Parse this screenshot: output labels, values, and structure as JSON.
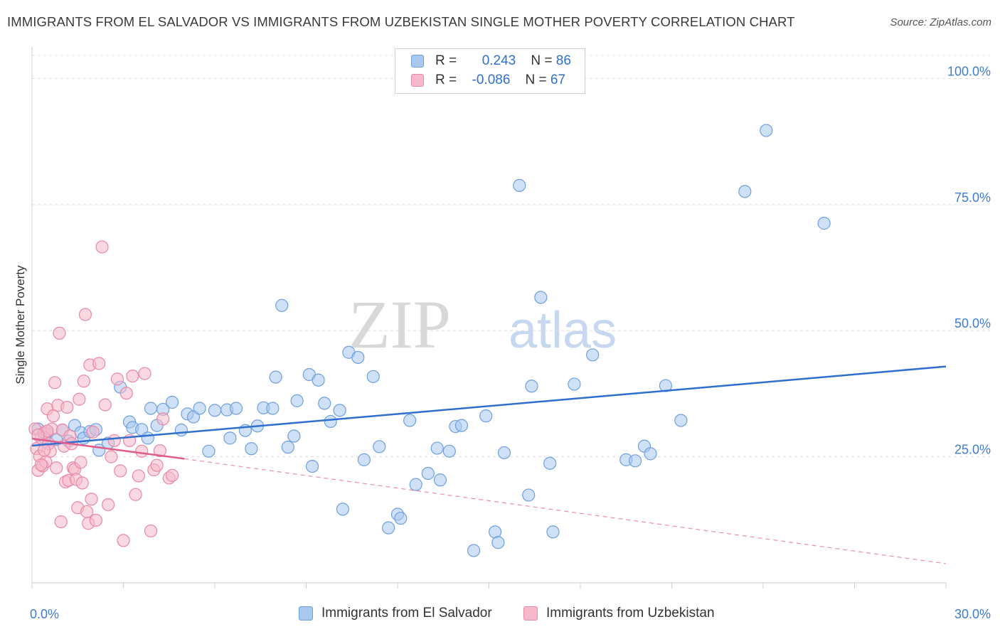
{
  "title": "IMMIGRANTS FROM EL SALVADOR VS IMMIGRANTS FROM UZBEKISTAN SINGLE MOTHER POVERTY CORRELATION CHART",
  "source": "Source: ZipAtlas.com",
  "watermark": {
    "zip": "ZIP",
    "atlas": "atlas"
  },
  "legend": {
    "rows": [
      {
        "r_label": "R =",
        "r_value": "0.243",
        "n_label": "N =",
        "n_value": "86",
        "color": "#a8c8f0"
      },
      {
        "r_label": "R =",
        "r_value": "-0.086",
        "n_label": "N =",
        "n_value": "67",
        "color": "#f6b8cb"
      }
    ]
  },
  "chart_data": {
    "type": "scatter",
    "title": "IMMIGRANTS FROM EL SALVADOR VS IMMIGRANTS FROM UZBEKISTAN SINGLE MOTHER POVERTY CORRELATION CHART",
    "xlabel": "",
    "ylabel": "Single Mother Poverty",
    "xlim": [
      0,
      30
    ],
    "ylim": [
      0,
      105
    ],
    "x_tick_labels": [
      "0.0%",
      "30.0%"
    ],
    "y_ticks": [
      25,
      50,
      75,
      100
    ],
    "y_tick_labels": [
      "25.0%",
      "50.0%",
      "75.0%",
      "100.0%"
    ],
    "grid": true,
    "legend_position": "bottom",
    "series": [
      {
        "name": "Immigrants from El Salvador",
        "color": "#a8c8f0",
        "stroke": "#6f9fdc",
        "trend_color": "#2f6fd0",
        "trend": {
          "x": [
            0,
            30
          ],
          "y": [
            27.2,
            42.9
          ]
        },
        "points": [
          [
            0.2,
            30.5
          ],
          [
            0.5,
            29.6
          ],
          [
            0.8,
            28.4
          ],
          [
            1.0,
            30.3
          ],
          [
            1.2,
            28.1
          ],
          [
            1.4,
            31.2
          ],
          [
            1.6,
            29.8
          ],
          [
            1.7,
            28.7
          ],
          [
            1.9,
            30.0
          ],
          [
            2.2,
            26.3
          ],
          [
            2.5,
            27.7
          ],
          [
            2.9,
            38.8
          ],
          [
            3.2,
            31.9
          ],
          [
            3.3,
            30.8
          ],
          [
            3.6,
            30.4
          ],
          [
            3.8,
            28.7
          ],
          [
            3.9,
            34.6
          ],
          [
            4.1,
            31.2
          ],
          [
            4.3,
            34.4
          ],
          [
            4.6,
            35.8
          ],
          [
            4.9,
            30.3
          ],
          [
            5.1,
            33.5
          ],
          [
            5.3,
            32.9
          ],
          [
            5.5,
            34.6
          ],
          [
            5.8,
            26.1
          ],
          [
            6.0,
            34.2
          ],
          [
            6.4,
            34.3
          ],
          [
            6.5,
            28.7
          ],
          [
            6.7,
            34.6
          ],
          [
            7.0,
            30.2
          ],
          [
            7.2,
            26.6
          ],
          [
            7.4,
            31.1
          ],
          [
            7.6,
            34.7
          ],
          [
            7.9,
            34.6
          ],
          [
            8.0,
            40.8
          ],
          [
            8.2,
            55.0
          ],
          [
            8.4,
            26.9
          ],
          [
            8.6,
            29.1
          ],
          [
            8.7,
            36.1
          ],
          [
            9.1,
            41.3
          ],
          [
            9.2,
            23.1
          ],
          [
            9.4,
            40.2
          ],
          [
            9.6,
            35.6
          ],
          [
            9.8,
            32.0
          ],
          [
            10.1,
            34.2
          ],
          [
            10.2,
            14.6
          ],
          [
            10.4,
            45.7
          ],
          [
            10.7,
            44.7
          ],
          [
            10.9,
            24.4
          ],
          [
            11.2,
            40.9
          ],
          [
            11.4,
            27.0
          ],
          [
            11.7,
            10.9
          ],
          [
            12.0,
            13.6
          ],
          [
            12.1,
            12.8
          ],
          [
            12.4,
            32.2
          ],
          [
            12.6,
            19.5
          ],
          [
            13.0,
            21.7
          ],
          [
            13.3,
            26.7
          ],
          [
            13.4,
            20.4
          ],
          [
            13.7,
            26.1
          ],
          [
            13.9,
            31.0
          ],
          [
            14.1,
            31.2
          ],
          [
            14.5,
            6.4
          ],
          [
            14.9,
            33.1
          ],
          [
            15.2,
            10.1
          ],
          [
            15.3,
            8.0
          ],
          [
            15.5,
            25.8
          ],
          [
            16.0,
            78.8
          ],
          [
            16.3,
            17.4
          ],
          [
            16.4,
            39.0
          ],
          [
            16.7,
            56.6
          ],
          [
            17.0,
            23.7
          ],
          [
            17.1,
            10.1
          ],
          [
            17.8,
            39.4
          ],
          [
            18.4,
            45.2
          ],
          [
            19.5,
            24.4
          ],
          [
            19.8,
            24.2
          ],
          [
            20.1,
            27.1
          ],
          [
            20.3,
            25.6
          ],
          [
            20.8,
            39.1
          ],
          [
            21.3,
            32.2
          ],
          [
            24.1,
            89.7
          ],
          [
            23.4,
            77.6
          ],
          [
            26.0,
            71.3
          ],
          [
            2.1,
            30.4
          ],
          [
            0.4,
            28.8
          ]
        ]
      },
      {
        "name": "Immigrants from Uzbekistan",
        "color": "#f6b8cb",
        "stroke": "#e888a6",
        "trend_color": "#e05c8a",
        "trend": {
          "x": [
            0,
            5.0
          ],
          "y": [
            28.6,
            24.6
          ]
        },
        "trend_dashed": {
          "x": [
            5.0,
            30
          ],
          "y": [
            24.6,
            3.8
          ]
        },
        "points": [
          [
            0.1,
            30.5
          ],
          [
            0.15,
            26.6
          ],
          [
            0.2,
            22.3
          ],
          [
            0.25,
            25.1
          ],
          [
            0.3,
            28.7
          ],
          [
            0.35,
            23.2
          ],
          [
            0.4,
            29.8
          ],
          [
            0.45,
            24.0
          ],
          [
            0.5,
            34.5
          ],
          [
            0.55,
            27.6
          ],
          [
            0.6,
            26.1
          ],
          [
            0.65,
            30.5
          ],
          [
            0.7,
            33.1
          ],
          [
            0.75,
            39.7
          ],
          [
            0.8,
            22.8
          ],
          [
            0.85,
            35.2
          ],
          [
            0.9,
            49.5
          ],
          [
            0.95,
            12.1
          ],
          [
            1.0,
            30.3
          ],
          [
            1.05,
            27.1
          ],
          [
            1.1,
            20.0
          ],
          [
            1.15,
            34.8
          ],
          [
            1.2,
            20.3
          ],
          [
            1.25,
            29.1
          ],
          [
            1.3,
            27.6
          ],
          [
            1.35,
            22.8
          ],
          [
            1.4,
            22.5
          ],
          [
            1.45,
            20.5
          ],
          [
            1.5,
            14.9
          ],
          [
            1.55,
            36.4
          ],
          [
            1.6,
            23.9
          ],
          [
            1.65,
            19.8
          ],
          [
            1.7,
            40.0
          ],
          [
            1.75,
            53.2
          ],
          [
            1.8,
            14.1
          ],
          [
            1.85,
            11.8
          ],
          [
            1.9,
            43.2
          ],
          [
            1.95,
            16.6
          ],
          [
            2.0,
            29.9
          ],
          [
            2.1,
            12.4
          ],
          [
            2.2,
            43.5
          ],
          [
            2.3,
            66.6
          ],
          [
            2.4,
            35.3
          ],
          [
            2.5,
            15.5
          ],
          [
            2.6,
            25.0
          ],
          [
            2.7,
            28.2
          ],
          [
            2.8,
            40.4
          ],
          [
            2.9,
            22.2
          ],
          [
            3.0,
            8.4
          ],
          [
            3.1,
            37.6
          ],
          [
            3.2,
            28.2
          ],
          [
            3.3,
            41.0
          ],
          [
            3.4,
            17.5
          ],
          [
            3.5,
            21.2
          ],
          [
            3.6,
            26.1
          ],
          [
            3.7,
            41.5
          ],
          [
            3.9,
            10.3
          ],
          [
            4.0,
            22.4
          ],
          [
            4.1,
            23.3
          ],
          [
            4.2,
            26.2
          ],
          [
            4.3,
            32.5
          ],
          [
            4.5,
            20.8
          ],
          [
            4.6,
            21.3
          ],
          [
            0.5,
            30.1
          ],
          [
            0.4,
            26.3
          ],
          [
            0.3,
            23.4
          ],
          [
            0.2,
            29.3
          ]
        ]
      }
    ]
  }
}
